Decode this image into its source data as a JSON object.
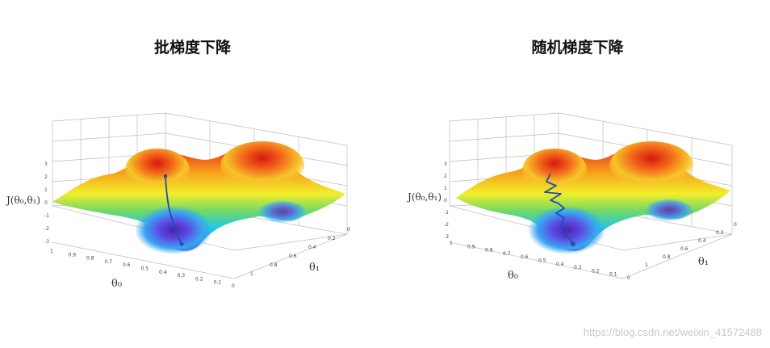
{
  "panels": [
    {
      "title": "批梯度下降",
      "z_label": "J(θ₀,θ₁)",
      "x_label": "θ₀",
      "y_label": "θ₁",
      "z_ticks": [
        "3",
        "2",
        "1",
        "0",
        "-1",
        "-2",
        "-3"
      ],
      "x_ticks": [
        "1",
        "0.9",
        "0.8",
        "0.7",
        "0.6",
        "0.5",
        "0.4",
        "0.3",
        "0.2",
        "0.1",
        "0"
      ],
      "y_ticks": [
        "0",
        "0.2",
        "0.4",
        "0.6",
        "0.8",
        "1"
      ],
      "path_color": "#1f4fa8"
    },
    {
      "title": "随机梯度下降",
      "z_label": "J(θ₀,θ₁)",
      "x_label": "θ₀",
      "y_label": "θ₁",
      "z_ticks": [
        "3",
        "2",
        "1",
        "0",
        "-1",
        "-2",
        "-3"
      ],
      "x_ticks": [
        "1",
        "0.9",
        "0.8",
        "0.7",
        "0.6",
        "0.5",
        "0.4",
        "0.3",
        "0.2",
        "0.1",
        "0"
      ],
      "y_ticks": [
        "0",
        "0.2",
        "0.4",
        "0.6",
        "0.8",
        "1"
      ],
      "path_color": "#1f4fa8"
    }
  ],
  "watermark": "https://blog.csdn.net/weixin_41572488"
}
